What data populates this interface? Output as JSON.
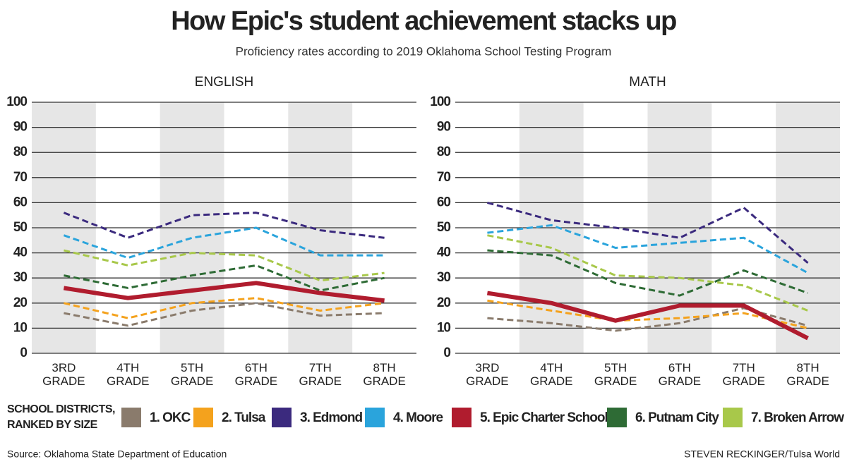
{
  "header": {
    "title": "How Epic's student achievement stacks up",
    "subtitle": "Proficiency rates according to 2019 Oklahoma School Testing Program"
  },
  "chart_data": [
    {
      "type": "line",
      "title": "ENGLISH",
      "categories": [
        "3RD GRADE",
        "4TH GRADE",
        "5TH GRADE",
        "6TH GRADE",
        "7TH GRADE",
        "8TH GRADE"
      ],
      "ylim": [
        0,
        100
      ],
      "yticks": [
        0,
        10,
        20,
        30,
        40,
        50,
        60,
        70,
        80,
        90,
        100
      ],
      "grid": true,
      "series": [
        {
          "name": "1. OKC",
          "color": "#8a7b6c",
          "style": "dashed",
          "values": [
            16,
            11,
            17,
            20,
            15,
            16
          ]
        },
        {
          "name": "2. Tulsa",
          "color": "#f4a21d",
          "style": "dashed",
          "values": [
            20,
            14,
            20,
            22,
            17,
            20
          ]
        },
        {
          "name": "3. Edmond",
          "color": "#3b2a7e",
          "style": "dashed",
          "values": [
            56,
            46,
            55,
            56,
            49,
            46
          ]
        },
        {
          "name": "4. Moore",
          "color": "#2aa4dc",
          "style": "dashed",
          "values": [
            47,
            38,
            46,
            50,
            39,
            39
          ]
        },
        {
          "name": "5. Epic Charter School",
          "color": "#b01c2e",
          "style": "solid",
          "values": [
            26,
            22,
            25,
            28,
            24,
            21
          ]
        },
        {
          "name": "6. Putnam City",
          "color": "#2e6b35",
          "style": "dashed",
          "values": [
            31,
            26,
            31,
            35,
            25,
            30
          ]
        },
        {
          "name": "7. Broken Arrow",
          "color": "#a8c84a",
          "style": "dashed",
          "values": [
            41,
            35,
            40,
            39,
            29,
            32
          ]
        }
      ]
    },
    {
      "type": "line",
      "title": "MATH",
      "categories": [
        "3RD GRADE",
        "4TH GRADE",
        "5TH GRADE",
        "6TH GRADE",
        "7TH GRADE",
        "8TH GRADE"
      ],
      "ylim": [
        0,
        100
      ],
      "yticks": [
        0,
        10,
        20,
        30,
        40,
        50,
        60,
        70,
        80,
        90,
        100
      ],
      "grid": true,
      "series": [
        {
          "name": "1. OKC",
          "color": "#8a7b6c",
          "style": "dashed",
          "values": [
            14,
            12,
            9,
            12,
            18,
            11
          ]
        },
        {
          "name": "2. Tulsa",
          "color": "#f4a21d",
          "style": "dashed",
          "values": [
            21,
            17,
            13,
            14,
            16,
            10
          ]
        },
        {
          "name": "3. Edmond",
          "color": "#3b2a7e",
          "style": "dashed",
          "values": [
            60,
            53,
            50,
            46,
            58,
            36
          ]
        },
        {
          "name": "4. Moore",
          "color": "#2aa4dc",
          "style": "dashed",
          "values": [
            48,
            51,
            42,
            44,
            46,
            32
          ]
        },
        {
          "name": "5. Epic Charter School",
          "color": "#b01c2e",
          "style": "solid",
          "values": [
            24,
            20,
            13,
            19,
            19,
            6
          ]
        },
        {
          "name": "6. Putnam City",
          "color": "#2e6b35",
          "style": "dashed",
          "values": [
            41,
            39,
            28,
            23,
            33,
            24
          ]
        },
        {
          "name": "7. Broken Arrow",
          "color": "#a8c84a",
          "style": "dashed",
          "values": [
            47,
            42,
            31,
            30,
            27,
            17
          ]
        }
      ]
    }
  ],
  "legend": {
    "title": [
      "SCHOOL DISTRICTS,",
      "RANKED BY SIZE"
    ]
  },
  "footer": {
    "source": "Source: Oklahoma State Department of Education",
    "credit": "STEVEN RECKINGER/Tulsa World"
  }
}
